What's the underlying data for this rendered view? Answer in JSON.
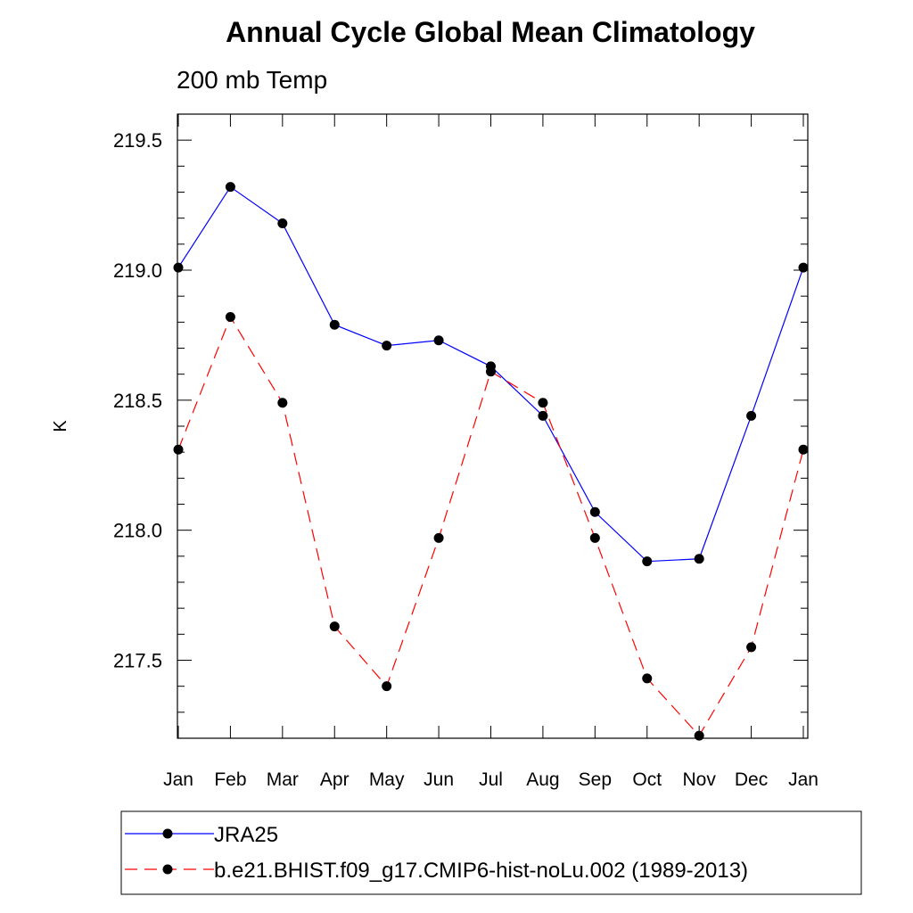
{
  "chart_data": {
    "type": "line",
    "title": "Annual Cycle Global Mean Climatology",
    "subtitle": "200 mb Temp",
    "xlabel": "",
    "ylabel": "K",
    "categories": [
      "Jan",
      "Feb",
      "Mar",
      "Apr",
      "May",
      "Jun",
      "Jul",
      "Aug",
      "Sep",
      "Oct",
      "Nov",
      "Dec",
      "Jan"
    ],
    "ylim": [
      217.2,
      219.6
    ],
    "y_ticks": [
      "217.5",
      "218.0",
      "218.5",
      "219.0",
      "219.5"
    ],
    "y_tick_values": [
      217.5,
      218.0,
      218.5,
      219.0,
      219.5
    ],
    "y_minor_step": 0.1,
    "series": [
      {
        "name": "JRA25",
        "color": "#0000ff",
        "dash": "solid",
        "values": [
          219.01,
          219.32,
          219.18,
          218.79,
          218.71,
          218.73,
          218.63,
          218.44,
          218.07,
          217.88,
          217.89,
          218.44,
          219.01
        ]
      },
      {
        "name": "b.e21.BHIST.f09_g17.CMIP6-hist-noLu.002 (1989-2013)",
        "color": "#ff0000",
        "dash": "dashed",
        "values": [
          218.31,
          218.82,
          218.49,
          217.63,
          217.4,
          217.97,
          218.61,
          218.49,
          217.97,
          217.43,
          217.21,
          217.55,
          218.31
        ]
      }
    ],
    "legend_position": "bottom-left"
  }
}
